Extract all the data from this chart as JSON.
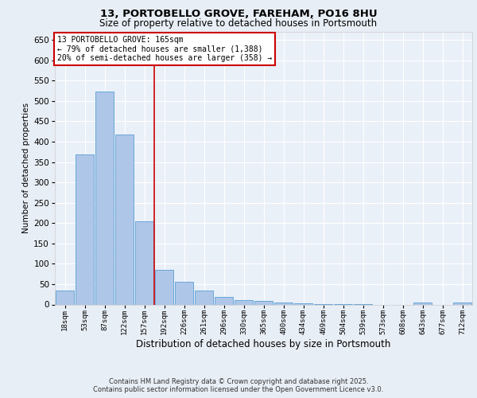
{
  "title_line1": "13, PORTOBELLO GROVE, FAREHAM, PO16 8HU",
  "title_line2": "Size of property relative to detached houses in Portsmouth",
  "xlabel": "Distribution of detached houses by size in Portsmouth",
  "ylabel": "Number of detached properties",
  "bar_labels": [
    "18sqm",
    "53sqm",
    "87sqm",
    "122sqm",
    "157sqm",
    "192sqm",
    "226sqm",
    "261sqm",
    "296sqm",
    "330sqm",
    "365sqm",
    "400sqm",
    "434sqm",
    "469sqm",
    "504sqm",
    "539sqm",
    "573sqm",
    "608sqm",
    "643sqm",
    "677sqm",
    "712sqm"
  ],
  "bar_values": [
    35,
    368,
    523,
    418,
    205,
    85,
    55,
    35,
    18,
    10,
    8,
    5,
    2,
    1,
    1,
    1,
    0,
    0,
    4,
    0,
    5
  ],
  "bar_color": "#aec6e8",
  "bar_edge_color": "#5a9fd4",
  "vline_color": "#cc0000",
  "ylim": [
    0,
    670
  ],
  "yticks": [
    0,
    50,
    100,
    150,
    200,
    250,
    300,
    350,
    400,
    450,
    500,
    550,
    600,
    650
  ],
  "annotation_title": "13 PORTOBELLO GROVE: 165sqm",
  "annotation_line2": "← 79% of detached houses are smaller (1,388)",
  "annotation_line3": "20% of semi-detached houses are larger (358) →",
  "annotation_box_color": "#cc0000",
  "footer_line1": "Contains HM Land Registry data © Crown copyright and database right 2025.",
  "footer_line2": "Contains public sector information licensed under the Open Government Licence v3.0.",
  "bg_color": "#e8eef5",
  "plot_bg_color": "#eaf0f8"
}
